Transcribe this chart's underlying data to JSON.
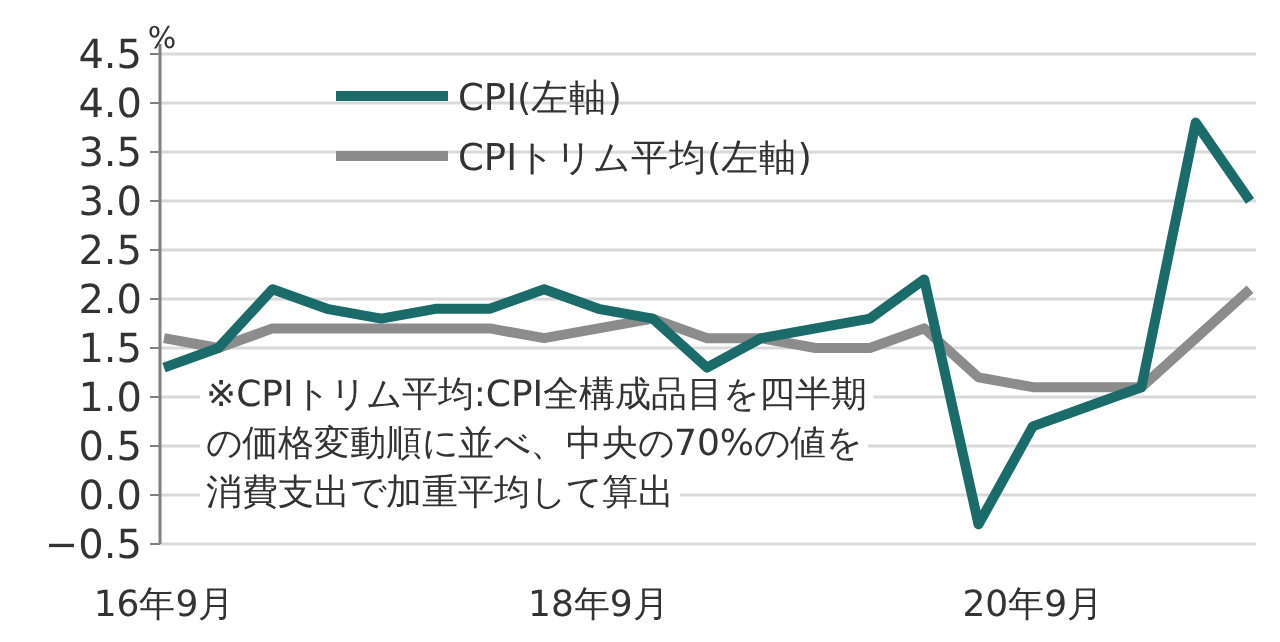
{
  "chart_data": {
    "type": "line",
    "ylabel": "%",
    "categories": [
      "16年9月",
      null,
      null,
      null,
      null,
      null,
      null,
      null,
      "18年9月",
      null,
      null,
      null,
      null,
      null,
      null,
      null,
      "20年9月",
      null,
      null,
      null,
      null
    ],
    "series": [
      {
        "name": "CPI(左軸)",
        "color": "#1b6b6b",
        "values": [
          1.3,
          1.5,
          2.1,
          1.9,
          1.8,
          1.9,
          1.9,
          2.1,
          1.9,
          1.8,
          1.3,
          1.6,
          1.7,
          1.8,
          2.2,
          -0.3,
          0.7,
          0.9,
          1.1,
          3.8,
          3.0
        ]
      },
      {
        "name": "CPIトリム平均(左軸)",
        "color": "#8c8c8c",
        "values": [
          1.6,
          1.5,
          1.7,
          1.7,
          1.7,
          1.7,
          1.7,
          1.6,
          1.7,
          1.8,
          1.6,
          1.6,
          1.5,
          1.5,
          1.7,
          1.2,
          1.1,
          1.1,
          1.1,
          1.6,
          2.1
        ]
      }
    ],
    "ylim": [
      -0.5,
      4.5
    ],
    "yticks": [
      {
        "value": -0.5,
        "label": "−0.5"
      },
      {
        "value": 0,
        "label": "0.0"
      },
      0.5,
      {
        "value": 1,
        "label": "1.0"
      },
      1.5,
      {
        "value": 2,
        "label": "2.0"
      },
      2.5,
      {
        "value": 3,
        "label": "3.0"
      },
      3.5,
      {
        "value": 4,
        "label": "4.0"
      },
      4.5
    ],
    "grid": "y",
    "legend": "top",
    "annotations": [
      "※CPIトリム平均:CPI全構成品目を四半期",
      "の価格変動順に並べ、中央の70%の値を",
      "消費支出で加重平均して算出"
    ]
  }
}
